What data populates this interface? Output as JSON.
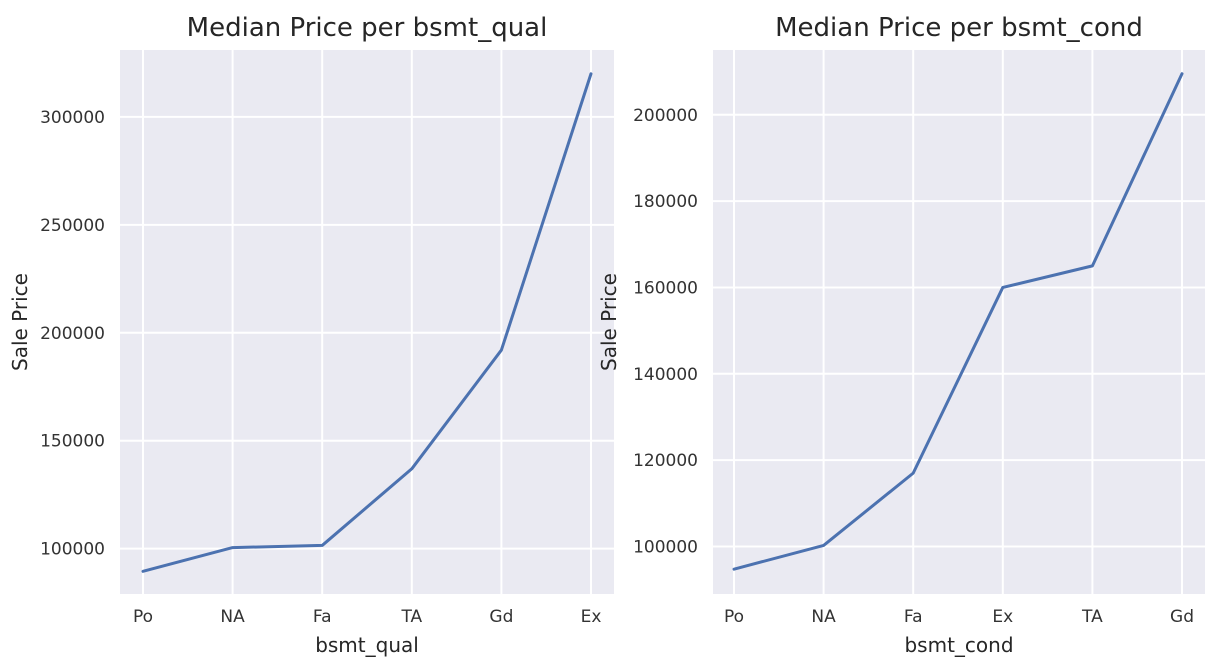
{
  "chart_data": [
    {
      "type": "line",
      "title": "Median Price per bsmt_qual",
      "xlabel": "bsmt_qual",
      "ylabel": "Sale Price",
      "categories": [
        "Po",
        "NA",
        "Fa",
        "TA",
        "Gd",
        "Ex"
      ],
      "series": [
        {
          "values": [
            89500,
            100500,
            101500,
            137000,
            192000,
            320000
          ]
        }
      ],
      "yticks": [
        100000,
        150000,
        200000,
        250000,
        300000
      ],
      "ylim": [
        79000,
        331000
      ],
      "grid": true,
      "line_color": "#4c72b0"
    },
    {
      "type": "line",
      "title": "Median Price per bsmt_cond",
      "xlabel": "bsmt_cond",
      "ylabel": "Sale Price",
      "categories": [
        "Po",
        "NA",
        "Fa",
        "Ex",
        "TA",
        "Gd"
      ],
      "series": [
        {
          "values": [
            94750,
            100250,
            117000,
            160000,
            165000,
            209500
          ]
        }
      ],
      "yticks": [
        100000,
        120000,
        140000,
        160000,
        180000,
        200000
      ],
      "ylim": [
        89000,
        215000
      ],
      "grid": true,
      "line_color": "#4c72b0"
    }
  ],
  "colors": {
    "panel_background": "#eaeaf2",
    "grid": "#ffffff",
    "text": "#262626"
  }
}
